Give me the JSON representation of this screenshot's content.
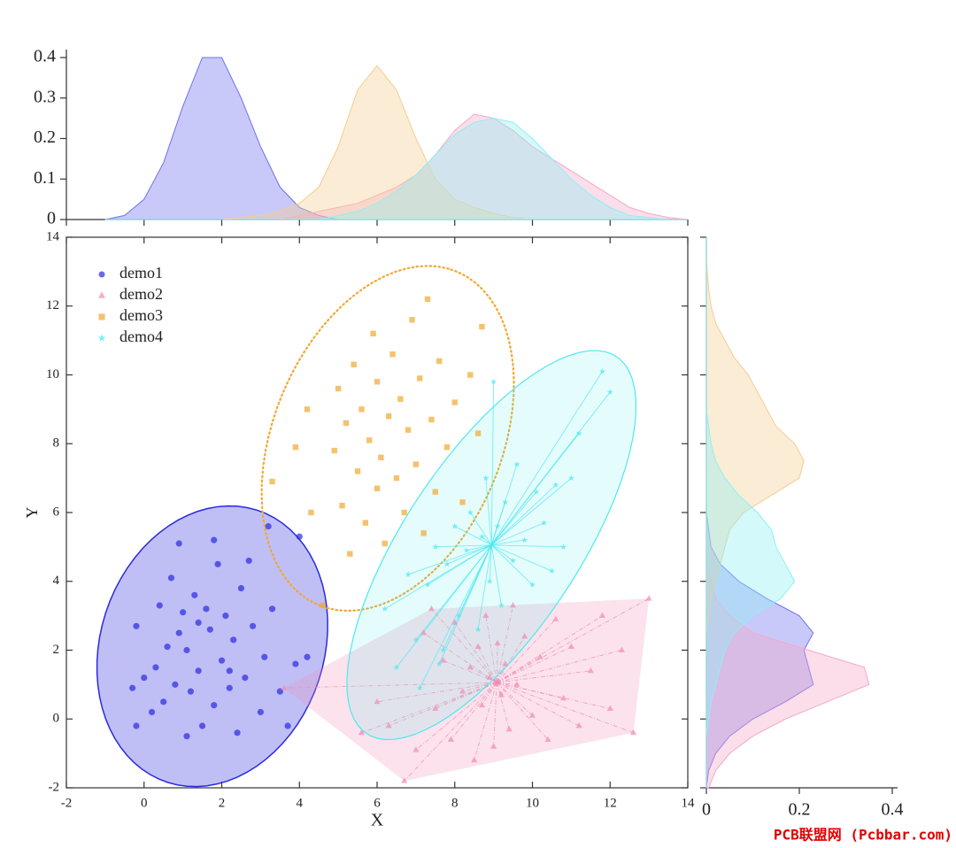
{
  "chart_data": [
    {
      "type": "scatter",
      "x_label": "X",
      "y_label": "Y",
      "xlim": [
        -2,
        14
      ],
      "ylim": [
        -2,
        14
      ],
      "xticks": [
        -2,
        0,
        2,
        4,
        6,
        8,
        10,
        12,
        14
      ],
      "yticks": [
        -2,
        0,
        2,
        4,
        6,
        8,
        10,
        12,
        14
      ],
      "legend": "upper left",
      "series": [
        {
          "name": "demo1",
          "color": "#2a2ae0",
          "marker": "circle",
          "overlay": "filled-ellipse",
          "x": [
            -0.2,
            -0.3,
            -0.2,
            0.0,
            0.2,
            0.3,
            0.4,
            0.5,
            0.6,
            0.7,
            0.8,
            0.9,
            1.0,
            1.1,
            1.1,
            1.2,
            1.3,
            1.4,
            1.4,
            1.5,
            1.6,
            1.7,
            1.8,
            1.9,
            2.0,
            2.1,
            2.2,
            2.3,
            2.4,
            2.5,
            2.6,
            2.7,
            2.8,
            3.0,
            3.1,
            3.2,
            3.3,
            3.5,
            3.7,
            3.9,
            4.0,
            4.2,
            1.8,
            0.9,
            2.2
          ],
          "values": [
            -0.2,
            0.9,
            2.7,
            1.2,
            0.2,
            1.5,
            3.3,
            0.5,
            2.1,
            4.1,
            1.0,
            5.1,
            3.1,
            -0.5,
            2.0,
            0.8,
            3.6,
            2.8,
            1.4,
            -0.2,
            3.2,
            2.6,
            0.4,
            4.5,
            1.7,
            3.0,
            0.9,
            2.3,
            -0.4,
            3.8,
            1.2,
            4.6,
            2.7,
            0.2,
            1.8,
            5.6,
            3.2,
            0.8,
            -0.2,
            1.6,
            5.3,
            1.8,
            5.2,
            2.5,
            1.4
          ]
        },
        {
          "name": "demo2",
          "color": "#f08cb4",
          "marker": "triangle",
          "overlay": "hull-spider",
          "x": [
            3.6,
            5.6,
            6.3,
            6.7,
            7.0,
            7.2,
            7.5,
            7.7,
            7.9,
            8.0,
            8.2,
            8.4,
            8.5,
            8.6,
            8.7,
            8.8,
            8.9,
            9.0,
            9.1,
            9.2,
            9.3,
            9.4,
            9.5,
            9.6,
            9.8,
            10.0,
            10.2,
            10.4,
            10.6,
            10.8,
            11.0,
            11.2,
            11.5,
            11.8,
            12.0,
            12.3,
            12.6,
            13.0,
            6.0,
            7.4
          ],
          "values": [
            0.9,
            -0.4,
            -0.2,
            -1.8,
            -0.9,
            2.5,
            0.3,
            1.7,
            -0.6,
            2.8,
            0.8,
            1.5,
            -1.2,
            2.1,
            0.4,
            3.0,
            1.2,
            -0.8,
            2.2,
            0.7,
            1.6,
            -0.3,
            3.3,
            1.0,
            2.4,
            0.1,
            1.8,
            -0.6,
            2.9,
            0.6,
            2.1,
            -0.2,
            1.4,
            3.0,
            0.3,
            2.0,
            -0.4,
            3.5,
            0.5,
            3.2
          ]
        },
        {
          "name": "demo3",
          "color": "#f0a830",
          "marker": "square",
          "overlay": "dotted-ellipse",
          "x": [
            4.6,
            4.9,
            5.0,
            5.1,
            5.2,
            5.3,
            5.4,
            5.5,
            5.6,
            5.7,
            5.8,
            5.9,
            6.0,
            6.0,
            6.1,
            6.2,
            6.3,
            6.4,
            6.5,
            6.6,
            6.7,
            6.8,
            6.9,
            7.0,
            7.1,
            7.2,
            7.3,
            7.4,
            7.5,
            7.6,
            7.8,
            8.0,
            8.2,
            8.4,
            8.6,
            8.7,
            4.2,
            3.9,
            3.3,
            4.3
          ],
          "values": [
            3.3,
            7.8,
            9.6,
            6.2,
            8.6,
            4.8,
            10.3,
            7.2,
            9.0,
            5.7,
            8.1,
            11.2,
            6.7,
            9.8,
            7.6,
            5.1,
            8.8,
            10.6,
            7.0,
            9.3,
            6.0,
            8.4,
            11.6,
            7.4,
            9.9,
            5.4,
            12.2,
            8.7,
            6.6,
            10.4,
            7.9,
            9.2,
            6.3,
            10.0,
            8.3,
            11.4,
            9.0,
            7.9,
            6.9,
            6.0
          ]
        },
        {
          "name": "demo4",
          "color": "#4ee8f0",
          "marker": "star",
          "overlay": "ellipse-spider",
          "x": [
            6.2,
            6.5,
            6.8,
            7.0,
            7.1,
            7.3,
            7.5,
            7.7,
            7.8,
            8.0,
            8.1,
            8.3,
            8.4,
            8.6,
            8.7,
            8.8,
            8.9,
            9.0,
            9.1,
            9.2,
            9.3,
            9.5,
            9.6,
            9.8,
            10.0,
            10.1,
            10.3,
            10.5,
            10.6,
            10.8,
            11.0,
            11.2,
            11.8,
            12.0,
            7.6
          ],
          "values": [
            3.2,
            1.5,
            4.2,
            2.3,
            0.9,
            3.9,
            5.0,
            2.0,
            4.5,
            5.6,
            3.0,
            4.9,
            6.0,
            2.6,
            5.3,
            7.0,
            4.0,
            9.8,
            5.6,
            3.3,
            6.3,
            4.6,
            7.4,
            5.2,
            3.9,
            6.6,
            5.7,
            4.3,
            6.8,
            5.0,
            7.0,
            8.3,
            10.1,
            9.5,
            1.6
          ]
        }
      ]
    },
    {
      "type": "area",
      "orientation": "vertical",
      "xlim": [
        -2,
        14
      ],
      "ylim": [
        0,
        0.4
      ],
      "xticks": [
        -2,
        0,
        2,
        4,
        6,
        8,
        10,
        12,
        14
      ],
      "yticks": [
        0,
        0.1,
        0.2,
        0.3,
        0.4
      ],
      "x": [
        -1,
        -0.5,
        0,
        0.5,
        1,
        1.5,
        2,
        2.5,
        3,
        3.5,
        4,
        4.5,
        5,
        5.5,
        6,
        6.5,
        7,
        7.5,
        8,
        8.5,
        9,
        9.5,
        10,
        10.5,
        11,
        11.5,
        12,
        12.5,
        13,
        13.5,
        14
      ],
      "series": [
        {
          "color": "#7070f0",
          "values": [
            0,
            0.01,
            0.05,
            0.14,
            0.28,
            0.4,
            0.4,
            0.3,
            0.18,
            0.08,
            0.03,
            0.01,
            0,
            0,
            0,
            0,
            0,
            0,
            0,
            0,
            0,
            0,
            0,
            0,
            0,
            0,
            0,
            0,
            0,
            0,
            0
          ]
        },
        {
          "color": "#f5a8c8",
          "values": [
            0,
            0,
            0,
            0,
            0,
            0,
            0,
            0,
            0,
            0,
            0.01,
            0.02,
            0.03,
            0.04,
            0.06,
            0.08,
            0.11,
            0.16,
            0.22,
            0.26,
            0.25,
            0.22,
            0.18,
            0.15,
            0.12,
            0.09,
            0.06,
            0.03,
            0.015,
            0.005,
            0
          ]
        },
        {
          "color": "#f5cc90",
          "values": [
            0,
            0,
            0,
            0,
            0,
            0,
            0,
            0.005,
            0.01,
            0.02,
            0.04,
            0.08,
            0.18,
            0.32,
            0.38,
            0.32,
            0.2,
            0.1,
            0.05,
            0.03,
            0.015,
            0.005,
            0,
            0,
            0,
            0,
            0,
            0,
            0,
            0,
            0
          ]
        },
        {
          "color": "#8ef0f4",
          "values": [
            0,
            0,
            0,
            0,
            0,
            0,
            0,
            0,
            0,
            0,
            0,
            0,
            0.01,
            0.02,
            0.04,
            0.07,
            0.11,
            0.16,
            0.21,
            0.24,
            0.25,
            0.24,
            0.2,
            0.15,
            0.1,
            0.06,
            0.03,
            0.01,
            0.005,
            0,
            0
          ]
        }
      ]
    },
    {
      "type": "area",
      "orientation": "horizontal",
      "xlim": [
        0,
        0.4
      ],
      "ylim": [
        -2,
        14
      ],
      "xticks": [
        0,
        0.2,
        0.4
      ],
      "yticks": [
        -2,
        0,
        2,
        4,
        6,
        8,
        10,
        12,
        14
      ],
      "y": [
        -2,
        -1.5,
        -1,
        -0.5,
        0,
        0.5,
        1,
        1.5,
        2,
        2.5,
        3,
        3.5,
        4,
        4.5,
        5,
        5.5,
        6,
        6.5,
        7,
        7.5,
        8,
        8.5,
        9,
        9.5,
        10,
        10.5,
        11,
        11.5,
        12,
        12.5,
        13,
        13.5,
        14
      ],
      "series": [
        {
          "color": "#7070f0",
          "values": [
            0,
            0.005,
            0.02,
            0.05,
            0.1,
            0.17,
            0.23,
            0.22,
            0.21,
            0.23,
            0.2,
            0.13,
            0.07,
            0.03,
            0.01,
            0.005,
            0,
            0,
            0,
            0,
            0,
            0,
            0,
            0,
            0,
            0,
            0,
            0,
            0,
            0,
            0,
            0,
            0
          ]
        },
        {
          "color": "#f5a8c8",
          "values": [
            0.005,
            0.02,
            0.05,
            0.1,
            0.17,
            0.26,
            0.35,
            0.34,
            0.22,
            0.1,
            0.05,
            0.02,
            0.01,
            0,
            0,
            0,
            0,
            0,
            0,
            0,
            0,
            0,
            0,
            0,
            0,
            0,
            0,
            0,
            0,
            0,
            0,
            0,
            0
          ]
        },
        {
          "color": "#f5cc90",
          "values": [
            0,
            0,
            0,
            0,
            0,
            0,
            0,
            0,
            0,
            0,
            0.005,
            0.01,
            0.02,
            0.03,
            0.04,
            0.05,
            0.08,
            0.14,
            0.2,
            0.21,
            0.19,
            0.15,
            0.13,
            0.11,
            0.09,
            0.06,
            0.04,
            0.02,
            0.01,
            0.005,
            0.002,
            0,
            0
          ]
        },
        {
          "color": "#8ef0f4",
          "values": [
            0,
            0,
            0,
            0,
            0.005,
            0.01,
            0.02,
            0.03,
            0.04,
            0.06,
            0.1,
            0.16,
            0.19,
            0.17,
            0.15,
            0.14,
            0.11,
            0.07,
            0.04,
            0.02,
            0.01,
            0.005,
            0,
            0,
            0,
            0,
            0,
            0,
            0,
            0,
            0,
            0,
            0
          ]
        }
      ]
    }
  ],
  "watermark": "PCB联盟网 (Pcbbar.com)"
}
